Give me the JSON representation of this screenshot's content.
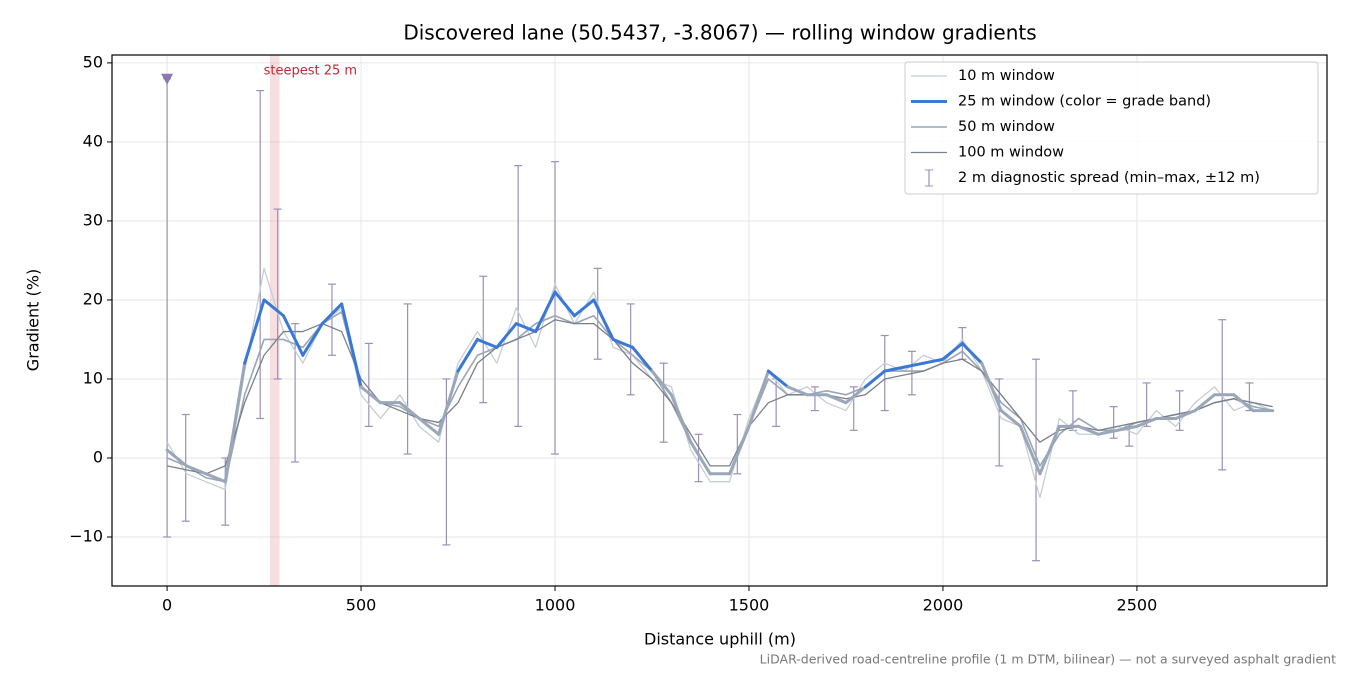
{
  "chart_data": {
    "type": "line",
    "title": "Discovered lane (50.5437, -3.8067) — rolling window gradients",
    "xlabel": "Distance uphill (m)",
    "ylabel": "Gradient (%)",
    "footnote": "LiDAR-derived road-centreline profile (1 m DTM, bilinear) — not a surveyed asphalt gradient",
    "xlim": [
      -142,
      2990
    ],
    "ylim": [
      -16.2,
      51
    ],
    "xticks": [
      0,
      500,
      1000,
      1500,
      2000,
      2500
    ],
    "yticks": [
      {
        "value": -10,
        "label": "−10"
      },
      0,
      10,
      20,
      30,
      40,
      50
    ],
    "grid": true,
    "legend": "upper right",
    "x": [
      0,
      50,
      100,
      150,
      200,
      250,
      300,
      350,
      400,
      450,
      500,
      550,
      600,
      650,
      700,
      750,
      800,
      850,
      900,
      950,
      1000,
      1050,
      1100,
      1150,
      1200,
      1250,
      1300,
      1350,
      1400,
      1450,
      1500,
      1550,
      1600,
      1650,
      1700,
      1750,
      1800,
      1850,
      1900,
      1950,
      2000,
      2050,
      2100,
      2150,
      2200,
      2250,
      2300,
      2350,
      2400,
      2450,
      2500,
      2550,
      2600,
      2650,
      2700,
      2750,
      2800,
      2850
    ],
    "series": [
      {
        "name": "10 m window",
        "color": "#c5cdd6",
        "linewidth": 1.3,
        "values": [
          2,
          -2,
          -3,
          -4,
          11,
          24,
          16,
          12,
          17,
          19,
          8,
          5,
          8,
          4,
          2,
          12,
          16,
          12,
          19,
          14,
          22,
          17,
          21,
          14,
          13,
          10,
          9,
          1,
          -3,
          -3,
          5,
          11,
          8,
          9,
          7,
          6,
          10,
          12,
          11,
          13,
          12,
          15,
          11,
          5,
          4,
          -5,
          5,
          3,
          3,
          4,
          3,
          6,
          4,
          7,
          9,
          6,
          7,
          6
        ]
      },
      {
        "name": "50 m window",
        "color": "#9aa5b5",
        "linewidth": 1.6,
        "values": [
          0,
          -1,
          -2.5,
          -3,
          8,
          15,
          15,
          14,
          17,
          18.5,
          9,
          7,
          6.5,
          5,
          4,
          9,
          13,
          14,
          15,
          17,
          18,
          17,
          18,
          15,
          13,
          11,
          7,
          2,
          -2,
          -2,
          4,
          10,
          8,
          8,
          8.5,
          8,
          9,
          11,
          11,
          11,
          12,
          13.5,
          11,
          7,
          5,
          -1,
          3,
          5,
          3.5,
          3.5,
          4.5,
          5,
          5.5,
          6,
          7,
          7.5,
          6.5,
          6
        ]
      },
      {
        "name": "100 m window",
        "color": "#7a808a",
        "linewidth": 1.3,
        "values": [
          -1,
          -1.5,
          -2,
          -1,
          7,
          13,
          16,
          16,
          17,
          16,
          10,
          7,
          6,
          5,
          4.5,
          7,
          12,
          14,
          15,
          16,
          17.5,
          17,
          17,
          15,
          12,
          10,
          7,
          3,
          -1,
          -1,
          4,
          7,
          8,
          8,
          8,
          7.5,
          8,
          10,
          10.5,
          11,
          12,
          12.5,
          11,
          8,
          5,
          2,
          3.5,
          4,
          3.5,
          4,
          4.5,
          5,
          5.5,
          6,
          7,
          7.5,
          7,
          6.5
        ]
      },
      {
        "name": "25 m window (color = grade band)",
        "color": "#3a78d8",
        "linewidth": 3,
        "low_color": "#9aa7b8",
        "grade_bands": [
          {
            "min": 20,
            "color": "#e08a00"
          },
          {
            "min": 10,
            "color": "#3a78d8"
          }
        ],
        "values": [
          1,
          -1,
          -2,
          -3,
          12,
          20,
          18,
          13,
          17,
          19.5,
          9,
          7,
          7,
          5,
          3,
          11,
          15,
          14,
          17,
          16,
          21,
          18,
          20,
          15,
          14,
          11,
          8,
          2,
          -2,
          -2,
          4,
          11,
          9,
          8,
          8,
          7,
          9,
          11,
          11.5,
          12,
          12.5,
          14.5,
          12,
          6,
          4,
          -2,
          4,
          4,
          3,
          3.5,
          4,
          5,
          5,
          6,
          8,
          8,
          6,
          6
        ]
      }
    ],
    "legend_order": [
      0,
      3,
      1,
      2
    ],
    "errorbars": {
      "name": "2 m diagnostic spread (min–max, ±12 m)",
      "color": "#9b90b8",
      "x": [
        0,
        48,
        150,
        240,
        285,
        330,
        425,
        520,
        620,
        720,
        815,
        905,
        1000,
        1110,
        1195,
        1280,
        1370,
        1470,
        1570,
        1670,
        1770,
        1850,
        1920,
        2050,
        2145,
        2240,
        2335,
        2440,
        2480,
        2525,
        2610,
        2720,
        2790
      ],
      "low": [
        -10,
        -8,
        -8.5,
        5,
        10,
        -0.5,
        13,
        4,
        0.5,
        -11,
        7,
        4,
        0.5,
        12.5,
        8,
        2,
        -3,
        -2,
        4,
        6,
        3.5,
        6,
        8,
        12.5,
        -1,
        -13,
        3.5,
        2.5,
        1.5,
        4,
        3.5,
        -1.5,
        6
      ],
      "high": [
        48,
        5.5,
        0,
        46.5,
        31.5,
        17,
        22,
        14.5,
        19.5,
        10,
        23,
        37,
        37.5,
        24,
        19.5,
        12,
        3,
        5.5,
        10,
        9,
        9,
        15.5,
        13.5,
        16.5,
        10,
        12.5,
        8.5,
        6.5,
        4,
        9.5,
        8.5,
        17.5,
        9.5
      ]
    },
    "peak_marker": {
      "x": 0,
      "y": 48,
      "color": "#8a78b0"
    },
    "highlight": {
      "label": "steepest 25 m",
      "x": [
        265,
        290
      ],
      "color": "#e8a0a8",
      "text_color": "#c0283c"
    }
  }
}
